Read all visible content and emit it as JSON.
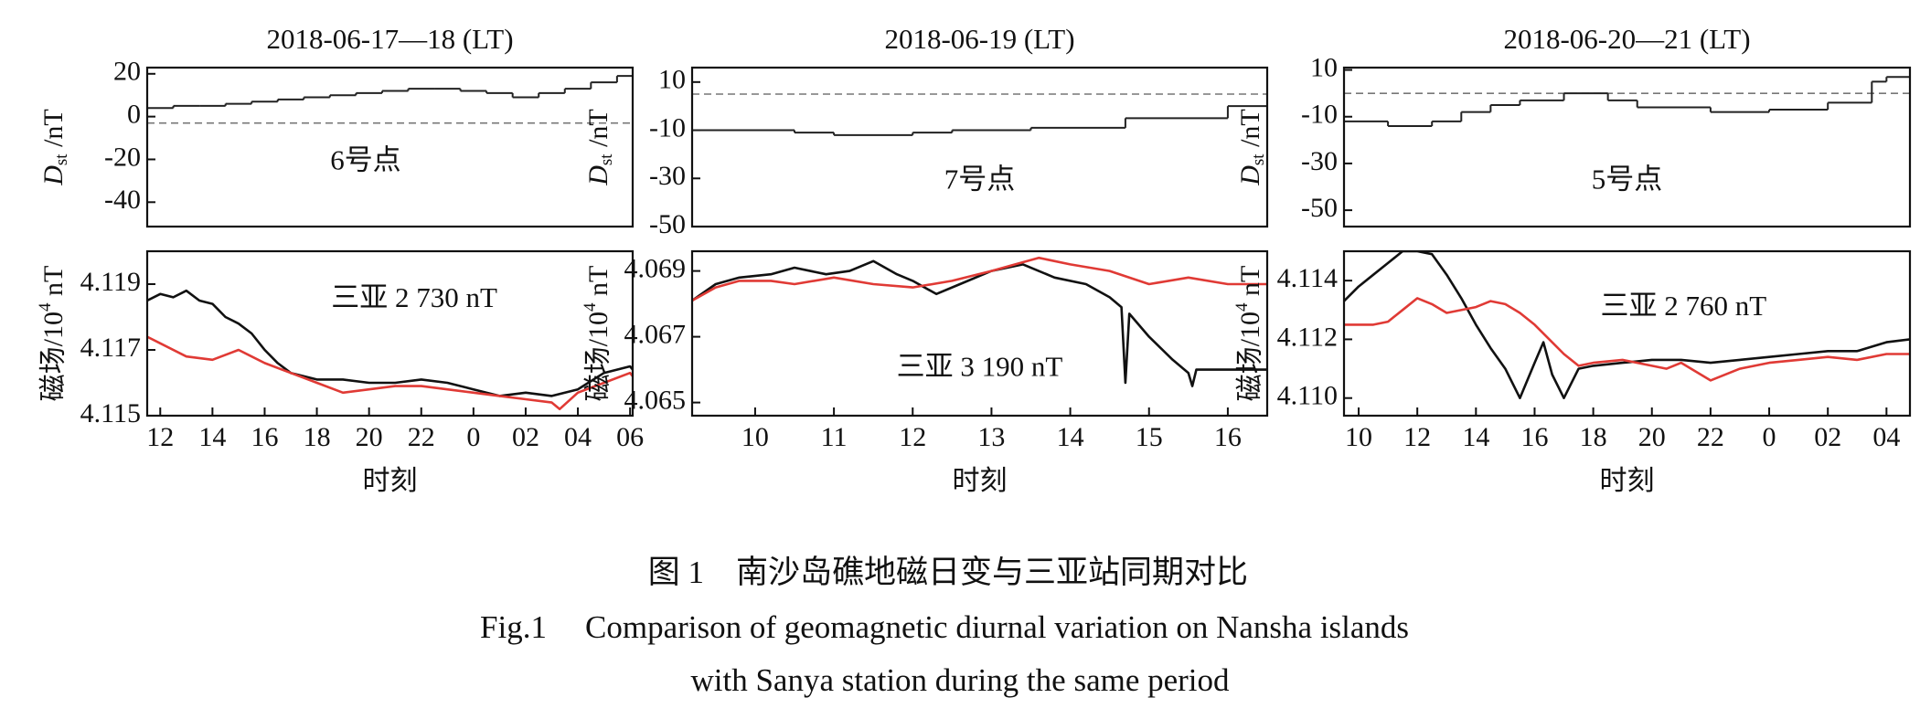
{
  "chart_data": [
    {
      "type": "line",
      "title": "2018-06-17—18 (LT)",
      "ylabel_parts": [
        "D",
        "st",
        " /nT"
      ],
      "annotation": "6号点",
      "xlim": [
        11.5,
        30.1
      ],
      "ylim": [
        -51.4,
        22.9
      ],
      "yticks": [
        20,
        0,
        -20,
        -40
      ],
      "hline": {
        "value": -3,
        "style": "dashed"
      },
      "series": [
        {
          "color": "#222222",
          "step": true,
          "x": [
            11.5,
            12.5,
            13.5,
            14.5,
            15.5,
            16.5,
            17.5,
            18.5,
            19.5,
            20.5,
            21.5,
            22.5,
            23.5,
            24.5,
            25.5,
            26.5,
            27.5,
            28.5,
            29.5
          ],
          "values": [
            4,
            5,
            5,
            6,
            7,
            8,
            9,
            10,
            11,
            12,
            13,
            13,
            12,
            11,
            9,
            11,
            13,
            16,
            19
          ]
        }
      ]
    },
    {
      "type": "line",
      "ylabel_parts": [
        "磁场/10",
        "4",
        " nT"
      ],
      "annotation": "三亚 2 730 nT",
      "xlabel": "时刻",
      "xlim": [
        11.5,
        30.1
      ],
      "ylim": [
        4.115,
        4.12
      ],
      "xticks": [
        12,
        14,
        16,
        18,
        20,
        22,
        {
          "value": 24,
          "label": "0"
        },
        {
          "value": 26,
          "label": "02"
        },
        {
          "value": 28,
          "label": "04"
        },
        {
          "value": 30,
          "label": "06"
        }
      ],
      "yticks": [
        4.119,
        4.117,
        4.115
      ],
      "series": [
        {
          "color": "#111111",
          "x": [
            11.5,
            12,
            12.5,
            13,
            13.5,
            14,
            14.5,
            15,
            15.5,
            16,
            16.5,
            17,
            18,
            19,
            20,
            21,
            22,
            23,
            24,
            25,
            26,
            27,
            28,
            29,
            30,
            30.1
          ],
          "values": [
            4.1185,
            4.1187,
            4.1186,
            4.1188,
            4.1185,
            4.1184,
            4.118,
            4.1178,
            4.1175,
            4.117,
            4.1166,
            4.1163,
            4.1161,
            4.1161,
            4.116,
            4.116,
            4.1161,
            4.116,
            4.1158,
            4.1156,
            4.1157,
            4.1156,
            4.1158,
            4.1163,
            4.1165,
            4.1164
          ]
        },
        {
          "color": "#e03a35",
          "x": [
            11.5,
            12,
            13,
            14,
            15,
            15.5,
            16,
            17,
            18,
            19,
            20,
            21,
            22,
            23,
            24,
            25,
            26,
            27,
            27.3,
            28,
            29,
            30,
            30.1
          ],
          "values": [
            4.1174,
            4.1172,
            4.1168,
            4.1167,
            4.117,
            4.1168,
            4.1166,
            4.1163,
            4.116,
            4.1157,
            4.1158,
            4.1159,
            4.1159,
            4.1158,
            4.1157,
            4.1156,
            4.1155,
            4.1154,
            4.1152,
            4.1157,
            4.116,
            4.1163,
            4.1162
          ]
        }
      ]
    },
    {
      "type": "line",
      "title": "2018-06-19 (LT)",
      "ylabel_parts": [
        "D",
        "st",
        " /nT"
      ],
      "annotation": "7号点",
      "xlim": [
        9.2,
        16.5
      ],
      "ylim": [
        -50,
        16
      ],
      "yticks": [
        10,
        -10,
        -30,
        -50
      ],
      "hline": {
        "value": 5,
        "style": "dashed"
      },
      "series": [
        {
          "color": "#222222",
          "step": true,
          "x": [
            9.2,
            10.5,
            11,
            12,
            12.5,
            13.5,
            14.7,
            16
          ],
          "values": [
            -10,
            -11,
            -12,
            -11,
            -10,
            -9,
            -5,
            0
          ]
        }
      ]
    },
    {
      "type": "line",
      "ylabel_parts": [
        "磁场/10",
        "4",
        " nT"
      ],
      "annotation": "三亚 3 190 nT",
      "xlabel": "时刻",
      "xlim": [
        9.2,
        16.5
      ],
      "ylim": [
        4.0646,
        4.0696
      ],
      "xticks": [
        10,
        11,
        12,
        13,
        14,
        15,
        16
      ],
      "yticks": [
        4.069,
        4.067,
        4.065
      ],
      "series": [
        {
          "color": "#111111",
          "x": [
            9.2,
            9.5,
            9.8,
            10.2,
            10.5,
            10.9,
            11.2,
            11.5,
            11.8,
            12,
            12.3,
            12.6,
            13,
            13.4,
            13.8,
            14.2,
            14.5,
            14.65,
            14.7,
            14.75,
            15,
            15.3,
            15.5,
            15.55,
            15.6,
            16,
            16.5
          ],
          "values": [
            4.0681,
            4.0686,
            4.0688,
            4.0689,
            4.0691,
            4.0689,
            4.069,
            4.0693,
            4.0689,
            4.0687,
            4.0683,
            4.0686,
            4.069,
            4.0692,
            4.0688,
            4.0686,
            4.0682,
            4.0679,
            4.0656,
            4.0677,
            4.067,
            4.0663,
            4.0659,
            4.0655,
            4.066,
            4.066,
            4.066
          ]
        },
        {
          "color": "#e03a35",
          "x": [
            9.2,
            9.5,
            9.8,
            10.2,
            10.5,
            11,
            11.5,
            12,
            12.5,
            13,
            13.3,
            13.6,
            14,
            14.5,
            15,
            15.5,
            16,
            16.5
          ],
          "values": [
            4.0681,
            4.0685,
            4.0687,
            4.0687,
            4.0686,
            4.0688,
            4.0686,
            4.0685,
            4.0687,
            4.069,
            4.0692,
            4.0694,
            4.0692,
            4.069,
            4.0686,
            4.0688,
            4.0686,
            4.0686
          ]
        }
      ]
    },
    {
      "type": "line",
      "title": "2018-06-20—21 (LT)",
      "ylabel_parts": [
        "D",
        "st",
        " /nT"
      ],
      "annotation": "5号点",
      "xlim": [
        9.5,
        28.8
      ],
      "ylim": [
        -57,
        11
      ],
      "yticks": [
        10,
        -10,
        -30,
        -50
      ],
      "hline": {
        "value": 0,
        "style": "dashed"
      },
      "series": [
        {
          "color": "#222222",
          "step": true,
          "x": [
            9.5,
            11,
            12.5,
            13.5,
            14.5,
            15.5,
            17,
            18.5,
            19.5,
            22,
            24,
            26,
            27.5,
            28
          ],
          "values": [
            -12,
            -14,
            -12,
            -8,
            -5,
            -3,
            0,
            -3,
            -6,
            -8,
            -7,
            -4,
            5,
            7
          ]
        }
      ]
    },
    {
      "type": "line",
      "ylabel_parts": [
        "磁场/10",
        "4",
        " nT"
      ],
      "annotation": "三亚 2 760 nT",
      "xlabel": "时刻",
      "xlim": [
        9.5,
        28.8
      ],
      "ylim": [
        4.1094,
        4.115
      ],
      "xticks": [
        10,
        12,
        14,
        16,
        18,
        20,
        22,
        {
          "value": 24,
          "label": "0"
        },
        {
          "value": 26,
          "label": "02"
        },
        {
          "value": 28,
          "label": "04"
        }
      ],
      "yticks": [
        {
          "value": 4.114,
          "label": "4.114"
        },
        {
          "value": 4.112,
          "label": "4.112"
        },
        {
          "value": 4.11,
          "label": "4.110"
        }
      ],
      "series": [
        {
          "color": "#111111",
          "x": [
            9.5,
            10,
            10.5,
            11,
            11.5,
            12,
            12.5,
            13,
            13.5,
            14,
            14.5,
            15,
            15.5,
            16,
            16.3,
            16.6,
            17,
            17.5,
            18,
            19,
            20,
            21,
            22,
            23,
            24,
            25,
            26,
            27,
            28,
            28.8
          ],
          "values": [
            4.1133,
            4.1138,
            4.1142,
            4.1146,
            4.115,
            4.115,
            4.1149,
            4.1142,
            4.1134,
            4.1125,
            4.1117,
            4.111,
            4.11,
            4.1112,
            4.1119,
            4.1108,
            4.11,
            4.111,
            4.1111,
            4.1112,
            4.1113,
            4.1113,
            4.1112,
            4.1113,
            4.1114,
            4.1115,
            4.1116,
            4.1116,
            4.1119,
            4.112
          ]
        },
        {
          "color": "#e03a35",
          "x": [
            9.5,
            10.5,
            11,
            11.5,
            12,
            12.5,
            13,
            14,
            14.5,
            15,
            15.5,
            16,
            16.5,
            17,
            17.5,
            18,
            19,
            20,
            20.5,
            21,
            22,
            23,
            24,
            25,
            26,
            27,
            28,
            28.8
          ],
          "values": [
            4.1125,
            4.1125,
            4.1126,
            4.113,
            4.1134,
            4.1132,
            4.1129,
            4.1131,
            4.1133,
            4.1132,
            4.1129,
            4.1125,
            4.112,
            4.1115,
            4.1111,
            4.1112,
            4.1113,
            4.1111,
            4.111,
            4.1112,
            4.1106,
            4.111,
            4.1112,
            4.1113,
            4.1114,
            4.1113,
            4.1115,
            4.1115
          ]
        }
      ]
    }
  ],
  "caption": {
    "cn_label": "图 1",
    "cn_text": "南沙岛礁地磁日变与三亚站同期对比",
    "en_label": "Fig.1",
    "en_text": "Comparison of geomagnetic diurnal variation on Nansha islands",
    "en_text_2": "with Sanya station during the same period"
  }
}
